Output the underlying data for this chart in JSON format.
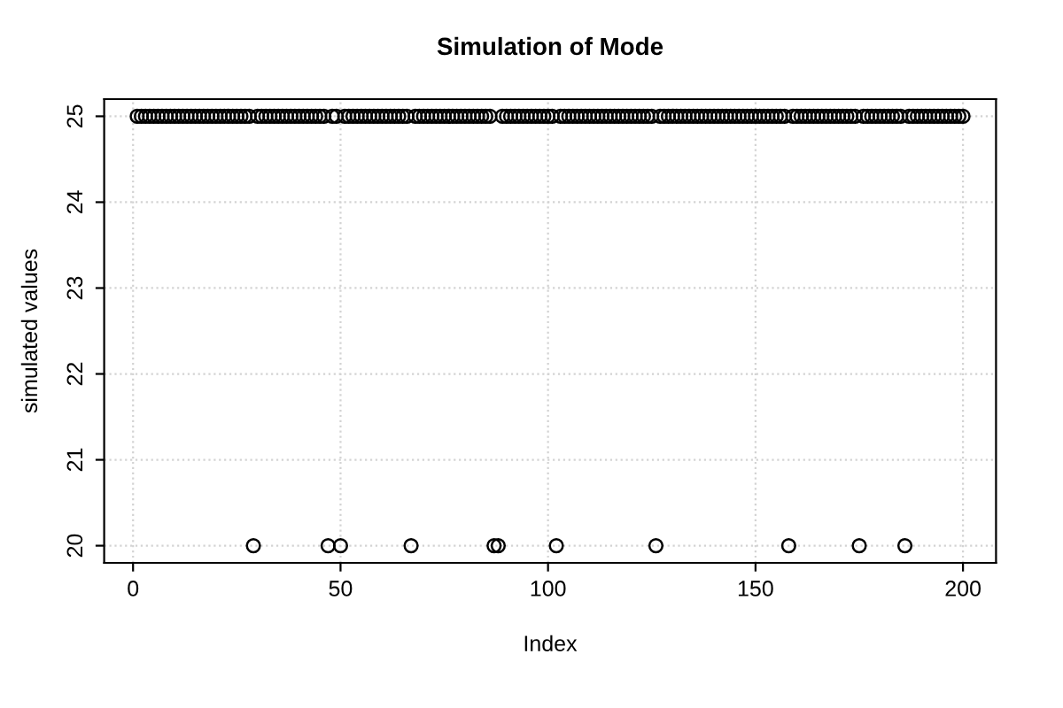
{
  "chart_data": {
    "type": "scatter",
    "title": "Simulation of Mode",
    "xlabel": "Index",
    "ylabel": "simulated values",
    "x": [
      1,
      2,
      3,
      4,
      5,
      6,
      7,
      8,
      9,
      10,
      11,
      12,
      13,
      14,
      15,
      16,
      17,
      18,
      19,
      20,
      21,
      22,
      23,
      24,
      25,
      26,
      27,
      28,
      29,
      30,
      31,
      32,
      33,
      34,
      35,
      36,
      37,
      38,
      39,
      40,
      41,
      42,
      43,
      44,
      45,
      46,
      47,
      48,
      49,
      50,
      51,
      52,
      53,
      54,
      55,
      56,
      57,
      58,
      59,
      60,
      61,
      62,
      63,
      64,
      65,
      66,
      67,
      68,
      69,
      70,
      71,
      72,
      73,
      74,
      75,
      76,
      77,
      78,
      79,
      80,
      81,
      82,
      83,
      84,
      85,
      86,
      87,
      88,
      89,
      90,
      91,
      92,
      93,
      94,
      95,
      96,
      97,
      98,
      99,
      100,
      101,
      102,
      103,
      104,
      105,
      106,
      107,
      108,
      109,
      110,
      111,
      112,
      113,
      114,
      115,
      116,
      117,
      118,
      119,
      120,
      121,
      122,
      123,
      124,
      125,
      126,
      127,
      128,
      129,
      130,
      131,
      132,
      133,
      134,
      135,
      136,
      137,
      138,
      139,
      140,
      141,
      142,
      143,
      144,
      145,
      146,
      147,
      148,
      149,
      150,
      151,
      152,
      153,
      154,
      155,
      156,
      157,
      158,
      159,
      160,
      161,
      162,
      163,
      164,
      165,
      166,
      167,
      168,
      169,
      170,
      171,
      172,
      173,
      174,
      175,
      176,
      177,
      178,
      179,
      180,
      181,
      182,
      183,
      184,
      185,
      186,
      187,
      188,
      189,
      190,
      191,
      192,
      193,
      194,
      195,
      196,
      197,
      198,
      199,
      200
    ],
    "values": [
      25,
      25,
      25,
      25,
      25,
      25,
      25,
      25,
      25,
      25,
      25,
      25,
      25,
      25,
      25,
      25,
      25,
      25,
      25,
      25,
      25,
      25,
      25,
      25,
      25,
      25,
      25,
      25,
      20,
      25,
      25,
      25,
      25,
      25,
      25,
      25,
      25,
      25,
      25,
      25,
      25,
      25,
      25,
      25,
      25,
      25,
      20,
      25,
      25,
      20,
      25,
      25,
      25,
      25,
      25,
      25,
      25,
      25,
      25,
      25,
      25,
      25,
      25,
      25,
      25,
      25,
      20,
      25,
      25,
      25,
      25,
      25,
      25,
      25,
      25,
      25,
      25,
      25,
      25,
      25,
      25,
      25,
      25,
      25,
      25,
      25,
      20,
      20,
      25,
      25,
      25,
      25,
      25,
      25,
      25,
      25,
      25,
      25,
      25,
      25,
      25,
      20,
      25,
      25,
      25,
      25,
      25,
      25,
      25,
      25,
      25,
      25,
      25,
      25,
      25,
      25,
      25,
      25,
      25,
      25,
      25,
      25,
      25,
      25,
      25,
      20,
      25,
      25,
      25,
      25,
      25,
      25,
      25,
      25,
      25,
      25,
      25,
      25,
      25,
      25,
      25,
      25,
      25,
      25,
      25,
      25,
      25,
      25,
      25,
      25,
      25,
      25,
      25,
      25,
      25,
      25,
      25,
      20,
      25,
      25,
      25,
      25,
      25,
      25,
      25,
      25,
      25,
      25,
      25,
      25,
      25,
      25,
      25,
      25,
      20,
      25,
      25,
      25,
      25,
      25,
      25,
      25,
      25,
      25,
      25,
      20,
      25,
      25,
      25,
      25,
      25,
      25,
      25,
      25,
      25,
      25,
      25,
      25,
      25,
      25
    ],
    "color": "#000000",
    "marker": "circle",
    "xlim": [
      -6.96,
      207.96
    ],
    "ylim": [
      19.8,
      25.2
    ],
    "xticks": [
      0,
      50,
      100,
      150,
      200
    ],
    "yticks": [
      20,
      21,
      22,
      23,
      24,
      25
    ],
    "grid": true
  }
}
